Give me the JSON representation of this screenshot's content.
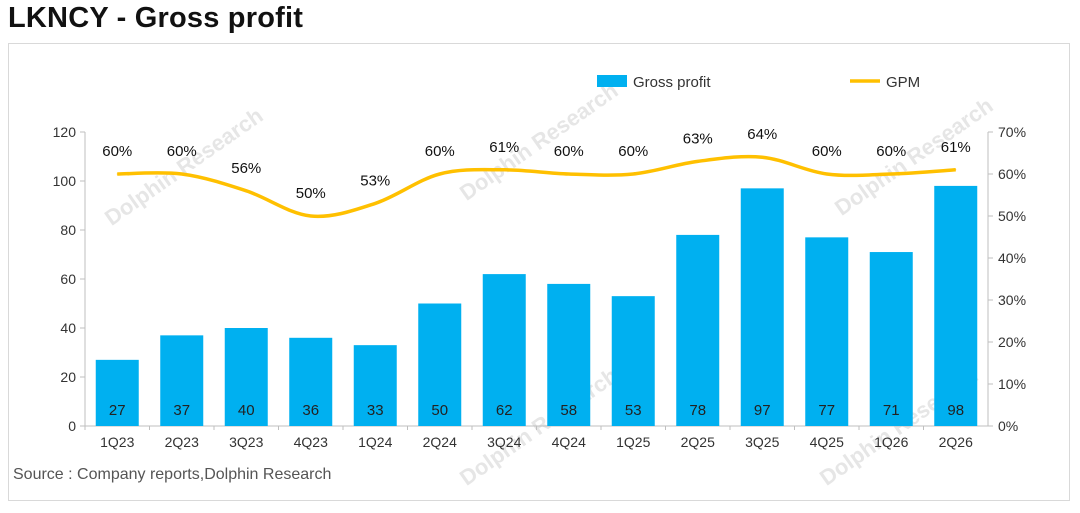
{
  "title": "LKNCY - Gross profit",
  "source": "Source : Company reports,Dolphin Research",
  "watermark": "Dolphin Research",
  "colors": {
    "bar": "#00b0f0",
    "line": "#ffc000",
    "axis": "#bfbfbf",
    "text": "#333333"
  },
  "chart_data": {
    "type": "bar",
    "categories": [
      "1Q23",
      "2Q23",
      "3Q23",
      "4Q23",
      "1Q24",
      "2Q24",
      "3Q24",
      "4Q24",
      "1Q25",
      "2Q25",
      "3Q25",
      "4Q25",
      "1Q26",
      "2Q26"
    ],
    "series": [
      {
        "name": "Gross profit",
        "type": "bar",
        "axis": "left",
        "values": [
          27,
          37,
          40,
          36,
          33,
          50,
          62,
          58,
          53,
          78,
          97,
          77,
          71,
          98
        ],
        "labels": [
          "27",
          "37",
          "40",
          "36",
          "33",
          "50",
          "62",
          "58",
          "53",
          "78",
          "97",
          "77",
          "71",
          "98"
        ]
      },
      {
        "name": "GPM",
        "type": "line",
        "axis": "right",
        "values": [
          60,
          60,
          56,
          50,
          53,
          60,
          61,
          60,
          60,
          63,
          64,
          60,
          60,
          61
        ],
        "labels": [
          "60%",
          "60%",
          "56%",
          "50%",
          "53%",
          "60%",
          "61%",
          "60%",
          "60%",
          "63%",
          "64%",
          "60%",
          "60%",
          "61%"
        ]
      }
    ],
    "ylim": [
      0,
      120
    ],
    "yticks": [
      "0",
      "20",
      "40",
      "60",
      "80",
      "100",
      "120"
    ],
    "y2lim": [
      0,
      70
    ],
    "y2ticks": [
      "0%",
      "10%",
      "20%",
      "30%",
      "40%",
      "50%",
      "60%",
      "70%"
    ],
    "legend": "top-right",
    "grid": false
  }
}
